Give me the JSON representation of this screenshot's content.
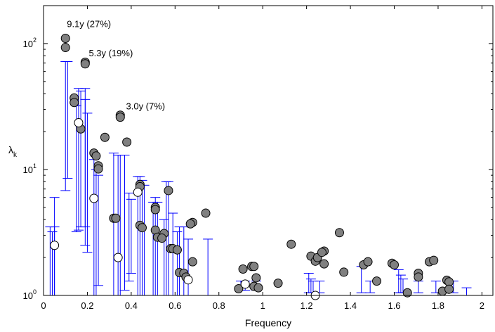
{
  "chart_data": {
    "type": "scatter",
    "xlabel": "Frequency",
    "ylabel": "λ",
    "ylabel_sub": "k",
    "xlim": [
      0,
      2.05
    ],
    "ylim": [
      1,
      200
    ],
    "yscale": "log",
    "grid": false,
    "legend": "none",
    "colors": {
      "filled_point": "#808080",
      "open_point": "#ffffff",
      "error_bar": "#0000ff",
      "axis": "#000000"
    },
    "x_ticks": [
      0,
      0.2,
      0.4,
      0.6,
      0.8,
      1.0,
      1.2,
      1.4,
      1.6,
      1.8,
      2.0
    ],
    "x_tick_labels": [
      "0",
      "0.2",
      "0.4",
      "0.6",
      "0.8",
      "1",
      "1.2",
      "1.4",
      "1.6",
      "1.8",
      "2"
    ],
    "y_ticks": [
      1,
      10,
      100
    ],
    "y_tick_labels": [
      {
        "base": "10",
        "exp": "0"
      },
      {
        "base": "10",
        "exp": "1"
      },
      {
        "base": "10",
        "exp": "2"
      }
    ],
    "annotations": [
      {
        "text": "9.1y (27%)",
        "x": 0.1,
        "y": 135
      },
      {
        "text": "5.3y (19%)",
        "x": 0.2,
        "y": 79
      },
      {
        "text": "3.0y (7%)",
        "x": 0.37,
        "y": 30
      }
    ],
    "filled_points": [
      [
        0.1,
        110
      ],
      [
        0.1,
        93
      ],
      [
        0.19,
        71
      ],
      [
        0.19,
        69
      ],
      [
        0.14,
        37
      ],
      [
        0.14,
        34
      ],
      [
        0.17,
        21
      ],
      [
        0.35,
        27
      ],
      [
        0.35,
        26
      ],
      [
        0.28,
        18
      ],
      [
        0.38,
        16.5
      ],
      [
        0.23,
        13.5
      ],
      [
        0.24,
        12.8
      ],
      [
        0.25,
        10.7
      ],
      [
        0.25,
        10.1
      ],
      [
        0.32,
        4.1
      ],
      [
        0.33,
        4.1
      ],
      [
        0.44,
        7.6
      ],
      [
        0.44,
        7.3
      ],
      [
        0.57,
        6.8
      ],
      [
        0.51,
        5.0
      ],
      [
        0.51,
        4.8
      ],
      [
        0.74,
        4.5
      ],
      [
        0.44,
        3.6
      ],
      [
        0.45,
        3.45
      ],
      [
        0.68,
        3.8
      ],
      [
        0.67,
        3.7
      ],
      [
        0.51,
        3.3
      ],
      [
        0.52,
        2.9
      ],
      [
        0.55,
        3.1
      ],
      [
        0.54,
        2.85
      ],
      [
        0.58,
        2.35
      ],
      [
        0.59,
        2.35
      ],
      [
        0.61,
        2.3
      ],
      [
        0.68,
        1.85
      ],
      [
        0.62,
        1.52
      ],
      [
        0.64,
        1.5
      ],
      [
        0.65,
        1.4
      ],
      [
        0.91,
        1.62
      ],
      [
        0.95,
        1.7
      ],
      [
        0.96,
        1.7
      ],
      [
        0.97,
        1.38
      ],
      [
        0.89,
        1.13
      ],
      [
        0.96,
        1.18
      ],
      [
        0.98,
        1.15
      ],
      [
        1.07,
        1.25
      ],
      [
        1.13,
        2.55
      ],
      [
        1.22,
        2.05
      ],
      [
        1.24,
        1.87
      ],
      [
        1.25,
        2.0
      ],
      [
        1.28,
        2.25
      ],
      [
        1.27,
        2.2
      ],
      [
        1.28,
        1.78
      ],
      [
        1.35,
        3.15
      ],
      [
        1.37,
        1.53
      ],
      [
        1.46,
        1.75
      ],
      [
        1.48,
        1.85
      ],
      [
        1.52,
        1.3
      ],
      [
        1.59,
        1.8
      ],
      [
        1.6,
        1.75
      ],
      [
        1.66,
        1.05
      ],
      [
        1.71,
        1.5
      ],
      [
        1.71,
        1.4
      ],
      [
        1.76,
        1.85
      ],
      [
        1.78,
        1.9
      ],
      [
        1.82,
        1.08
      ],
      [
        1.84,
        1.32
      ],
      [
        1.85,
        1.28
      ],
      [
        1.85,
        1.12
      ]
    ],
    "open_points": [
      [
        0.05,
        2.5
      ],
      [
        0.16,
        23.5
      ],
      [
        0.23,
        5.9
      ],
      [
        0.34,
        2.0
      ],
      [
        0.43,
        6.6
      ],
      [
        0.66,
        1.33
      ],
      [
        0.92,
        1.23
      ],
      [
        1.24,
        1.0
      ]
    ],
    "error_bars": [
      [
        0.03,
        1,
        3.5
      ],
      [
        0.04,
        1,
        3.2
      ],
      [
        0.05,
        1,
        3.5
      ],
      [
        0.05,
        1,
        6.0
      ],
      [
        0.1,
        6.8,
        72
      ],
      [
        0.11,
        8.5,
        72
      ],
      [
        0.15,
        3.2,
        32
      ],
      [
        0.16,
        3.3,
        44
      ],
      [
        0.17,
        3.5,
        42
      ],
      [
        0.19,
        3.5,
        44
      ],
      [
        0.19,
        2.5,
        36
      ],
      [
        0.2,
        2.2,
        28
      ],
      [
        0.23,
        1,
        12
      ],
      [
        0.24,
        1,
        10
      ],
      [
        0.25,
        1.2,
        9
      ],
      [
        0.32,
        1,
        13.5
      ],
      [
        0.34,
        1,
        13
      ],
      [
        0.35,
        1,
        13
      ],
      [
        0.37,
        1.1,
        13
      ],
      [
        0.39,
        1.3,
        6.5
      ],
      [
        0.4,
        1.5,
        5.8
      ],
      [
        0.43,
        1,
        8.8
      ],
      [
        0.44,
        1,
        8.8
      ],
      [
        0.45,
        1,
        8.2
      ],
      [
        0.46,
        1,
        7.5
      ],
      [
        0.5,
        1,
        5.5
      ],
      [
        0.51,
        1,
        6.0
      ],
      [
        0.52,
        1,
        5.5
      ],
      [
        0.55,
        1,
        4.0
      ],
      [
        0.56,
        1,
        8.0
      ],
      [
        0.57,
        1,
        8.0
      ],
      [
        0.59,
        1,
        4.5
      ],
      [
        0.61,
        1,
        3.2
      ],
      [
        0.62,
        1,
        3.5
      ],
      [
        0.64,
        1,
        3.5
      ],
      [
        0.66,
        1,
        2.8
      ],
      [
        0.75,
        1,
        2.8
      ],
      [
        0.9,
        1.1,
        1.3
      ],
      [
        0.92,
        1.1,
        1.3
      ],
      [
        0.97,
        1.1,
        1.3
      ],
      [
        1.21,
        1.05,
        1.5
      ],
      [
        1.22,
        1.05,
        1.35
      ],
      [
        1.23,
        1.05,
        1.3
      ],
      [
        1.26,
        1.05,
        1.3
      ],
      [
        1.45,
        1.05,
        1.7
      ],
      [
        1.49,
        1.05,
        1.3
      ],
      [
        1.62,
        1.05,
        1.6
      ],
      [
        1.63,
        1.05,
        1.45
      ],
      [
        1.64,
        1.05,
        1.35
      ],
      [
        1.71,
        1.05,
        1.3
      ],
      [
        1.79,
        1.05,
        1.3
      ],
      [
        1.87,
        1.05,
        1.3
      ],
      [
        1.93,
        1.0,
        1.15
      ]
    ]
  }
}
